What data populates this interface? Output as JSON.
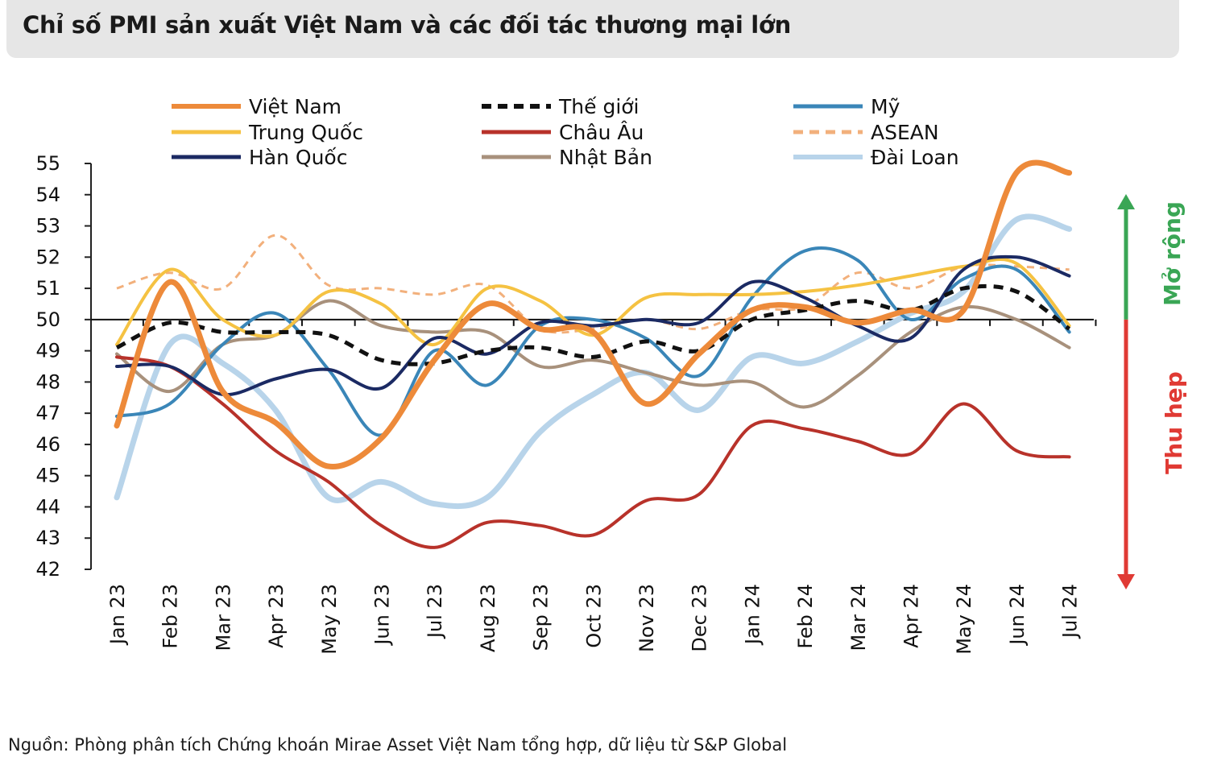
{
  "title": "Chỉ số PMI sản xuất Việt Nam và các đối tác thương mại lớn",
  "source": "Nguồn: Phòng phân tích Chứng khoán Mirae Asset Việt Nam tổng hợp, dữ liệu từ S&P Global",
  "side_labels": {
    "expand": "Mở rộng",
    "contract": "Thu hẹp",
    "expand_color": "#3aa655",
    "contract_color": "#e03a34"
  },
  "chart_data": {
    "type": "line",
    "categories": [
      "Jan 23",
      "Feb 23",
      "Mar 23",
      "Apr 23",
      "May 23",
      "Jun 23",
      "Jul 23",
      "Aug 23",
      "Sep 23",
      "Oct 23",
      "Nov 23",
      "Dec 23",
      "Jan 24",
      "Feb 24",
      "Mar 24",
      "Apr 24",
      "May 24",
      "Jun 24",
      "Jul 24"
    ],
    "ylim": [
      42,
      55
    ],
    "yticks": [
      42,
      43,
      44,
      45,
      46,
      47,
      48,
      49,
      50,
      51,
      52,
      53,
      54,
      55
    ],
    "reference_line": 50,
    "legend_position": "top",
    "series": [
      {
        "name": "Việt Nam",
        "color": "#ed8a3a",
        "dash": false,
        "width": 7,
        "values": [
          46.6,
          51.2,
          47.7,
          46.7,
          45.3,
          46.2,
          48.7,
          50.5,
          49.7,
          49.6,
          47.3,
          48.9,
          50.3,
          50.4,
          49.9,
          50.3,
          50.3,
          54.7,
          54.7
        ]
      },
      {
        "name": "Thế giới",
        "color": "#111111",
        "dash": true,
        "width": 5,
        "values": [
          49.1,
          49.9,
          49.6,
          49.6,
          49.5,
          48.7,
          48.6,
          49.0,
          49.1,
          48.8,
          49.3,
          49.0,
          50.0,
          50.3,
          50.6,
          50.3,
          51.0,
          50.9,
          49.7
        ]
      },
      {
        "name": "Mỹ",
        "color": "#3a86b8",
        "dash": false,
        "width": 4,
        "values": [
          46.9,
          47.3,
          49.2,
          50.2,
          48.4,
          46.3,
          49.0,
          47.9,
          49.8,
          50.0,
          49.4,
          48.2,
          50.7,
          52.2,
          51.9,
          50.0,
          51.3,
          51.6,
          49.6
        ]
      },
      {
        "name": "Trung Quốc",
        "color": "#f5c242",
        "dash": false,
        "width": 4,
        "values": [
          49.2,
          51.6,
          50.0,
          49.5,
          50.9,
          50.5,
          49.2,
          51.0,
          50.6,
          49.5,
          50.7,
          50.8,
          50.8,
          50.9,
          51.1,
          51.4,
          51.7,
          51.8,
          49.8
        ]
      },
      {
        "name": "Châu Âu",
        "color": "#b8322a",
        "dash": false,
        "width": 4,
        "values": [
          48.8,
          48.5,
          47.3,
          45.8,
          44.8,
          43.4,
          42.7,
          43.5,
          43.4,
          43.1,
          44.2,
          44.4,
          46.6,
          46.5,
          46.1,
          45.7,
          47.3,
          45.8,
          45.6
        ]
      },
      {
        "name": "ASEAN",
        "color": "#f2b07c",
        "dash": true,
        "width": 3,
        "values": [
          51.0,
          51.5,
          51.0,
          52.7,
          51.1,
          51.0,
          50.8,
          51.1,
          49.7,
          49.7,
          50.0,
          49.7,
          50.3,
          50.4,
          51.5,
          51.0,
          51.7,
          51.7,
          51.6
        ]
      },
      {
        "name": "Hàn Quốc",
        "color": "#1b2a63",
        "dash": false,
        "width": 4,
        "values": [
          48.5,
          48.5,
          47.6,
          48.1,
          48.4,
          47.8,
          49.4,
          48.9,
          49.9,
          49.8,
          50.0,
          49.9,
          51.2,
          50.7,
          49.8,
          49.4,
          51.6,
          52.0,
          51.4
        ]
      },
      {
        "name": "Nhật Bản",
        "color": "#a8917c",
        "dash": false,
        "width": 4,
        "values": [
          48.9,
          47.7,
          49.2,
          49.5,
          50.6,
          49.8,
          49.6,
          49.6,
          48.5,
          48.7,
          48.3,
          47.9,
          48.0,
          47.2,
          48.2,
          49.6,
          50.4,
          50.0,
          49.1
        ]
      },
      {
        "name": "Đài Loan",
        "color": "#b8d4ea",
        "dash": false,
        "width": 7,
        "values": [
          44.3,
          49.2,
          48.6,
          47.1,
          44.3,
          44.8,
          44.1,
          44.3,
          46.4,
          47.6,
          48.3,
          47.1,
          48.8,
          48.6,
          49.3,
          50.2,
          50.9,
          53.2,
          52.9
        ]
      }
    ]
  }
}
